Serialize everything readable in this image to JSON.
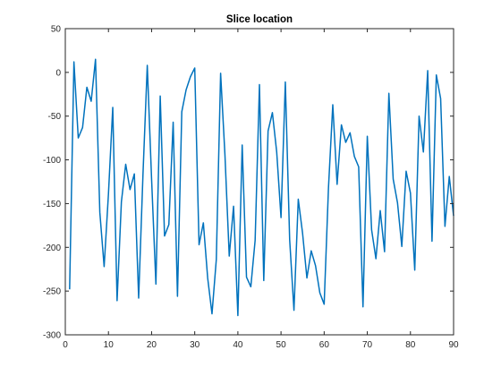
{
  "chart_data": {
    "type": "line",
    "title": "Slice location",
    "xlabel": "",
    "ylabel": "",
    "xlim": [
      0,
      90
    ],
    "ylim": [
      -300,
      50
    ],
    "grid": false,
    "legend": "none",
    "x_ticks": [
      0,
      10,
      20,
      30,
      40,
      50,
      60,
      70,
      80,
      90
    ],
    "y_ticks": [
      50,
      0,
      -50,
      -100,
      -150,
      -200,
      -250,
      -300
    ],
    "series": [
      {
        "color": "#0072BD",
        "x": [
          1,
          2,
          3,
          4,
          5,
          6,
          7,
          8,
          9,
          10,
          11,
          12,
          13,
          14,
          15,
          16,
          17,
          18,
          19,
          20,
          21,
          22,
          23,
          24,
          25,
          26,
          27,
          28,
          29,
          30,
          31,
          32,
          33,
          34,
          35,
          36,
          37,
          38,
          39,
          40,
          41,
          42,
          43,
          44,
          45,
          46,
          47,
          48,
          49,
          50,
          51,
          52,
          53,
          54,
          55,
          56,
          57,
          58,
          59,
          60,
          61,
          62,
          63,
          64,
          65,
          66,
          67,
          68,
          69,
          70,
          71,
          72,
          73,
          74,
          75,
          76,
          77,
          78,
          79,
          80,
          81,
          82,
          83,
          84,
          85,
          86,
          87,
          88,
          89,
          90
        ],
        "values": [
          -248,
          12,
          -75,
          -63,
          -17,
          -33,
          15,
          -160,
          -222,
          -139,
          -40,
          -261,
          -148,
          -105,
          -134,
          -116,
          -258,
          -117,
          8,
          -122,
          -242,
          -27,
          -187,
          -174,
          -57,
          -256,
          -45,
          -20,
          -5,
          5,
          -197,
          -172,
          -235,
          -276,
          -214,
          -1,
          -94,
          -210,
          -153,
          -278,
          -83,
          -234,
          -245,
          -192,
          -14,
          -238,
          -67,
          -46,
          -91,
          -166,
          -11,
          -191,
          -272,
          -145,
          -184,
          -235,
          -204,
          -221,
          -252,
          -265,
          -132,
          -37,
          -128,
          -60,
          -80,
          -69,
          -96,
          -108,
          -268,
          -73,
          -180,
          -213,
          -158,
          -205,
          -24,
          -122,
          -149,
          -199,
          -113,
          -138,
          -226,
          -50,
          -91,
          2,
          -193,
          -3,
          -30,
          -176,
          -119,
          -164
        ]
      }
    ]
  }
}
